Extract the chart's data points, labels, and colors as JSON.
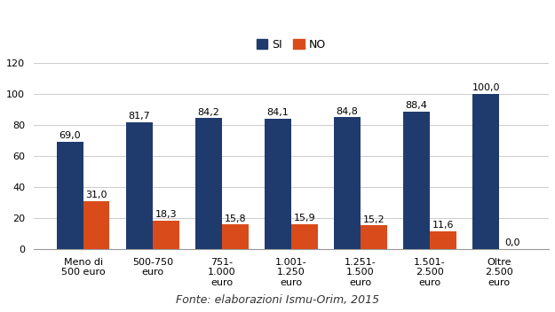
{
  "categories": [
    "Meno di\n500 euro",
    "500-750\neuro",
    "751-\n1.000\neuro",
    "1.001-\n1.250\neuro",
    "1.251-\n1.500\neuro",
    "1.501-\n2.500\neuro",
    "Oltre\n2.500\neuro"
  ],
  "cat_colors": [
    null,
    null,
    "orange",
    null,
    null,
    null,
    null
  ],
  "si_values": [
    69.0,
    81.7,
    84.2,
    84.1,
    84.8,
    88.4,
    100.0
  ],
  "no_values": [
    31.0,
    18.3,
    15.8,
    15.9,
    15.2,
    11.6,
    0.0
  ],
  "si_color": "#1F3B6E",
  "no_color": "#D94B1A",
  "ylim": [
    0,
    120
  ],
  "yticks": [
    0,
    20,
    40,
    60,
    80,
    100,
    120
  ],
  "legend_labels": [
    "SI",
    "NO"
  ],
  "source_text": "Fonte: elaborazioni Ismu-Orim, 2015",
  "bar_width": 0.38,
  "label_fontsize": 8,
  "tick_fontsize": 8,
  "legend_fontsize": 9,
  "source_fontsize": 9
}
